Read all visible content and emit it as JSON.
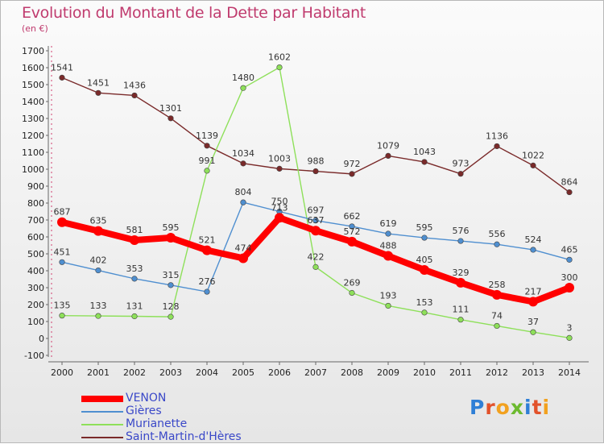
{
  "title": "Evolution du Montant de la Dette par Habitant",
  "unit": "(en €)",
  "logo": "Proxiti",
  "chart_data": {
    "type": "line",
    "x": [
      "2000",
      "2001",
      "2002",
      "2003",
      "2004",
      "2005",
      "2006",
      "2007",
      "2008",
      "2009",
      "2010",
      "2011",
      "2012",
      "2013",
      "2014"
    ],
    "ylim": [
      -100,
      1700
    ],
    "yticks": [
      -100,
      0,
      100,
      200,
      300,
      400,
      500,
      600,
      700,
      800,
      900,
      1000,
      1100,
      1200,
      1300,
      1400,
      1500,
      1600,
      1700
    ],
    "grid": false,
    "legend_position": "bottom-left",
    "series": [
      {
        "name": "VENON",
        "color": "#ff0000",
        "values": [
          687,
          635,
          581,
          595,
          521,
          474,
          713,
          637,
          572,
          488,
          405,
          329,
          258,
          217,
          300
        ]
      },
      {
        "name": "Gières",
        "color": "#4f8fd0",
        "values": [
          451,
          402,
          353,
          315,
          276,
          804,
          750,
          697,
          662,
          619,
          595,
          576,
          556,
          524,
          465
        ]
      },
      {
        "name": "Murianette",
        "color": "#8ee05a",
        "values": [
          135,
          133,
          131,
          128,
          991,
          1480,
          1602,
          422,
          269,
          193,
          153,
          111,
          74,
          37,
          3
        ]
      },
      {
        "name": "Saint-Martin-d'Hères",
        "color": "#7a2a2a",
        "values": [
          1541,
          1451,
          1436,
          1301,
          1139,
          1034,
          1003,
          988,
          972,
          1079,
          1043,
          973,
          1136,
          1022,
          864
        ]
      }
    ]
  }
}
